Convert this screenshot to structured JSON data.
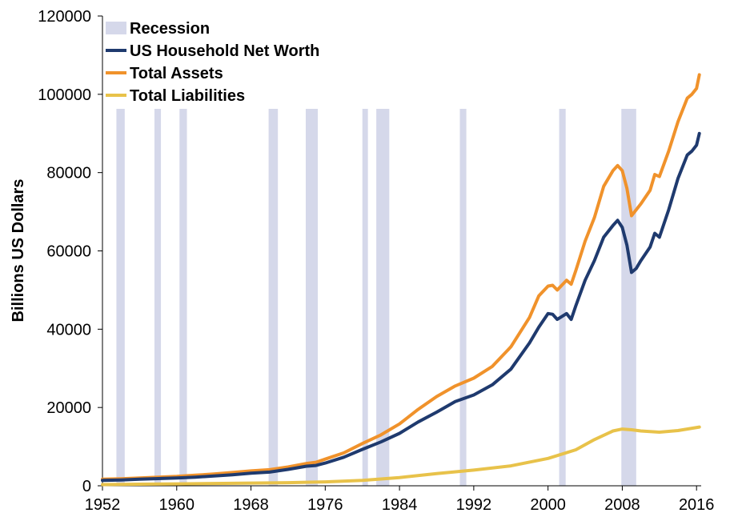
{
  "chart_data": {
    "type": "line",
    "title": "",
    "xlabel": "",
    "ylabel": "Billions US Dollars",
    "xlim": [
      1952,
      2016.5
    ],
    "ylim": [
      0,
      120000
    ],
    "x_ticks": [
      1952,
      1960,
      1968,
      1976,
      1984,
      1992,
      2000,
      2008,
      2016
    ],
    "y_ticks": [
      0,
      20000,
      40000,
      60000,
      80000,
      100000,
      120000
    ],
    "grid": false,
    "legend_position": "top-left",
    "legend": [
      {
        "label": "Recession",
        "kind": "band",
        "color": "#d5d8ea"
      },
      {
        "label": "US Household Net Worth",
        "kind": "line",
        "color": "#1f3a6e"
      },
      {
        "label": "Total Assets",
        "kind": "line",
        "color": "#f0922b"
      },
      {
        "label": "Total Liabilities",
        "kind": "line",
        "color": "#e8c24a"
      }
    ],
    "recessions": [
      [
        1953.5,
        1954.4
      ],
      [
        1957.6,
        1958.3
      ],
      [
        1960.3,
        1961.1
      ],
      [
        1969.9,
        1970.9
      ],
      [
        1973.9,
        1975.2
      ],
      [
        1980.0,
        1980.6
      ],
      [
        1981.5,
        1982.9
      ],
      [
        1990.5,
        1991.2
      ],
      [
        2001.2,
        2001.9
      ],
      [
        2007.9,
        2009.5
      ]
    ],
    "series": [
      {
        "name": "Total Assets",
        "color": "#f0922b",
        "x": [
          1952,
          1954,
          1956,
          1958,
          1960,
          1962,
          1964,
          1966,
          1968,
          1970,
          1972,
          1974,
          1975,
          1976,
          1978,
          1980,
          1982,
          1984,
          1986,
          1988,
          1990,
          1992,
          1994,
          1996,
          1998,
          1999,
          2000,
          2000.5,
          2001,
          2002,
          2002.5,
          2003,
          2004,
          2005,
          2006,
          2007,
          2007.5,
          2008,
          2008.5,
          2009,
          2009.5,
          2010,
          2011,
          2011.5,
          2012,
          2013,
          2014,
          2015,
          2015.5,
          2016,
          2016.3
        ],
        "values": [
          1700,
          1800,
          2000,
          2200,
          2400,
          2700,
          3000,
          3400,
          3800,
          4100,
          4800,
          5700,
          6000,
          6800,
          8400,
          10800,
          13000,
          15800,
          19500,
          22800,
          25500,
          27500,
          30500,
          35500,
          43000,
          48500,
          51000,
          51200,
          50000,
          52500,
          51500,
          55000,
          62500,
          68500,
          76500,
          80500,
          81800,
          80500,
          76000,
          69000,
          70500,
          72000,
          75500,
          79500,
          79000,
          85500,
          93000,
          99000,
          100000,
          101500,
          105000
        ]
      },
      {
        "name": "US Household Net Worth",
        "color": "#1f3a6e",
        "x": [
          1952,
          1954,
          1956,
          1958,
          1960,
          1962,
          1964,
          1966,
          1968,
          1970,
          1972,
          1974,
          1975,
          1976,
          1978,
          1980,
          1982,
          1984,
          1986,
          1988,
          1990,
          1992,
          1994,
          1996,
          1998,
          1999,
          2000,
          2000.5,
          2001,
          2002,
          2002.5,
          2003,
          2004,
          2005,
          2006,
          2007,
          2007.5,
          2008,
          2008.5,
          2009,
          2009.5,
          2010,
          2011,
          2011.5,
          2012,
          2013,
          2014,
          2015,
          2015.5,
          2016,
          2016.3
        ],
        "values": [
          1400,
          1500,
          1700,
          1850,
          2000,
          2200,
          2500,
          2800,
          3200,
          3500,
          4200,
          5000,
          5200,
          5800,
          7300,
          9300,
          11200,
          13400,
          16300,
          18800,
          21500,
          23200,
          25800,
          29800,
          36500,
          40500,
          44000,
          43800,
          42500,
          44000,
          42500,
          46000,
          52500,
          57500,
          63500,
          66500,
          67800,
          66000,
          61500,
          54500,
          55500,
          57500,
          61000,
          64500,
          63500,
          70500,
          78500,
          84500,
          85500,
          87000,
          90000
        ]
      },
      {
        "name": "Total Liabilities",
        "color": "#e8c24a",
        "x": [
          1952,
          1956,
          1960,
          1964,
          1968,
          1972,
          1976,
          1980,
          1984,
          1988,
          1992,
          1996,
          2000,
          2003,
          2005,
          2007,
          2008,
          2009,
          2010,
          2012,
          2014,
          2016.3
        ],
        "values": [
          300,
          400,
          500,
          600,
          700,
          800,
          1000,
          1400,
          2100,
          3100,
          4000,
          5100,
          7000,
          9200,
          11800,
          14000,
          14500,
          14300,
          14000,
          13700,
          14100,
          15000
        ]
      }
    ]
  }
}
